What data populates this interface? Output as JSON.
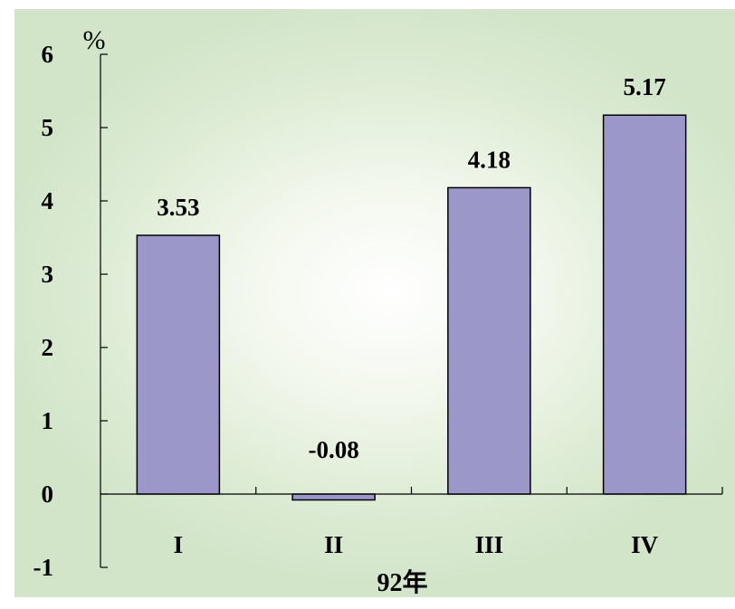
{
  "chart_data": {
    "type": "bar",
    "title": "",
    "xlabel": "92年",
    "ylabel": "%",
    "categories": [
      "I",
      "II",
      "III",
      "IV"
    ],
    "series": [
      {
        "values": [
          3.53,
          -0.08,
          4.18,
          5.17
        ]
      }
    ],
    "data_labels": [
      "3.53",
      "-0.08",
      "4.18",
      "5.17"
    ],
    "ylim": [
      -1,
      6
    ],
    "yticks": [
      -1,
      0,
      1,
      2,
      3,
      4,
      5,
      6
    ],
    "ytick_labels": [
      "-1",
      "0",
      "1",
      "2",
      "3",
      "4",
      "5",
      "6"
    ],
    "grid": false,
    "legend": "none",
    "colors": {
      "bar_fill": "#9b98c9",
      "bar_stroke": "#000000",
      "background_center": "#ffffff",
      "background_edge": "#d2e5c9"
    }
  }
}
